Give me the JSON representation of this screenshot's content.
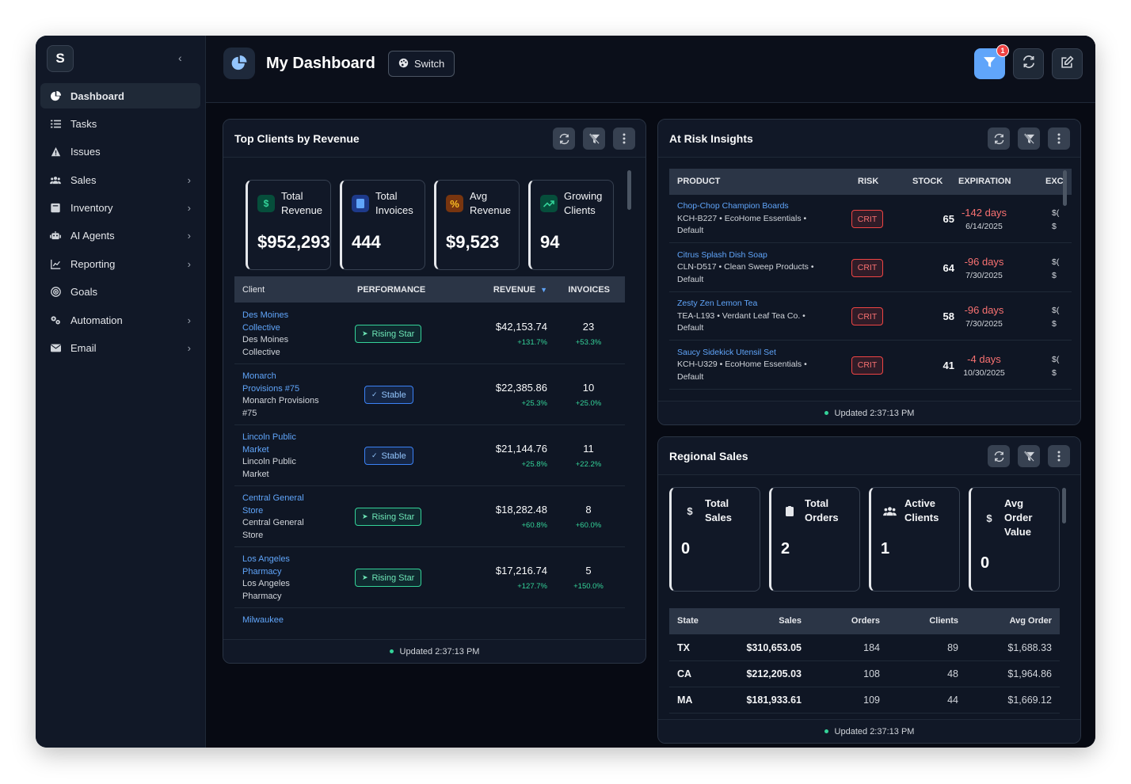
{
  "sidebar": {
    "logo": "S",
    "collapse_icon": "chevron-left-icon",
    "items": [
      {
        "label": "Dashboard",
        "icon": "pie-chart-icon",
        "active": true
      },
      {
        "label": "Tasks",
        "icon": "list-icon"
      },
      {
        "label": "Issues",
        "icon": "warning-icon"
      },
      {
        "label": "Sales",
        "icon": "users-icon",
        "has_children": true
      },
      {
        "label": "Inventory",
        "icon": "box-icon",
        "has_children": true
      },
      {
        "label": "AI Agents",
        "icon": "robot-icon",
        "has_children": true
      },
      {
        "label": "Reporting",
        "icon": "line-chart-icon",
        "has_children": true
      },
      {
        "label": "Goals",
        "icon": "target-icon"
      },
      {
        "label": "Automation",
        "icon": "gears-icon",
        "has_children": true
      },
      {
        "label": "Email",
        "icon": "envelope-icon",
        "has_children": true
      }
    ]
  },
  "header": {
    "title": "My Dashboard",
    "switch_label": "Switch",
    "filter_badge": "1"
  },
  "top_clients": {
    "title": "Top Clients by Revenue",
    "kpis": [
      {
        "label1": "Total",
        "label2": "Revenue",
        "value": "$952,293",
        "icon": "dollar-icon",
        "icon_color": "#34d399",
        "icon_bg": "#064e3b"
      },
      {
        "label1": "Total",
        "label2": "Invoices",
        "value": "444",
        "icon": "document-icon",
        "icon_color": "#60a5fa",
        "icon_bg": "#1e3a8a"
      },
      {
        "label1": "Avg",
        "label2": "Revenue",
        "value": "$9,523",
        "icon": "percent-icon",
        "icon_color": "#fbbf24",
        "icon_bg": "#78350f"
      },
      {
        "label1": "Growing",
        "label2": "Clients",
        "value": "94",
        "icon": "trend-up-icon",
        "icon_color": "#34d399",
        "icon_bg": "#064e3b"
      }
    ],
    "columns": {
      "client": "Client",
      "performance": "PERFORMANCE",
      "revenue": "REVENUE",
      "invoices": "INVOICES"
    },
    "rows": [
      {
        "name1": "Des Moines",
        "name2": "Collective",
        "sub1": "Des Moines",
        "sub2": "Collective",
        "perf": "Rising Star",
        "perf_type": "rising",
        "revenue": "$42,153.74",
        "rev_change": "+131.7%",
        "invoices": "23",
        "inv_change": "+53.3%"
      },
      {
        "name1": "Monarch",
        "name2": "Provisions #75",
        "sub1": "Monarch Provisions",
        "sub2": "#75",
        "perf": "Stable",
        "perf_type": "stable",
        "revenue": "$22,385.86",
        "rev_change": "+25.3%",
        "invoices": "10",
        "inv_change": "+25.0%"
      },
      {
        "name1": "Lincoln Public",
        "name2": "Market",
        "sub1": "Lincoln Public",
        "sub2": "Market",
        "perf": "Stable",
        "perf_type": "stable",
        "revenue": "$21,144.76",
        "rev_change": "+25.8%",
        "invoices": "11",
        "inv_change": "+22.2%"
      },
      {
        "name1": "Central General",
        "name2": "Store",
        "sub1": "Central General",
        "sub2": "Store",
        "perf": "Rising Star",
        "perf_type": "rising",
        "revenue": "$18,282.48",
        "rev_change": "+60.8%",
        "invoices": "8",
        "inv_change": "+60.0%"
      },
      {
        "name1": "Los Angeles",
        "name2": "Pharmacy",
        "sub1": "Los Angeles",
        "sub2": "Pharmacy",
        "perf": "Rising Star",
        "perf_type": "rising",
        "revenue": "$17,216.74",
        "rev_change": "+127.7%",
        "invoices": "5",
        "inv_change": "+150.0%"
      },
      {
        "name1": "Milwaukee",
        "name2": "",
        "sub1": "",
        "sub2": "",
        "perf": "",
        "perf_type": "",
        "revenue": "",
        "rev_change": "",
        "invoices": "",
        "inv_change": ""
      }
    ],
    "updated": "Updated 2:37:13 PM"
  },
  "at_risk": {
    "title": "At Risk Insights",
    "columns": {
      "product": "PRODUCT",
      "risk": "RISK",
      "stock": "STOCK",
      "expiration": "EXPIRATION",
      "exc": "EXC"
    },
    "rows": [
      {
        "name": "Chop-Chop Champion Boards",
        "meta": "KCH-B227 • EcoHome Essentials •",
        "loc": "Default",
        "risk": "CRIT",
        "stock": "65",
        "days": "-142 days",
        "date": "6/14/2025",
        "exc1": "$(",
        "exc2": "$"
      },
      {
        "name": "Citrus Splash Dish Soap",
        "meta": "CLN-D517 • Clean Sweep Products •",
        "loc": "Default",
        "risk": "CRIT",
        "stock": "64",
        "days": "-96 days",
        "date": "7/30/2025",
        "exc1": "$(",
        "exc2": "$"
      },
      {
        "name": "Zesty Zen Lemon Tea",
        "meta": "TEA-L193 • Verdant Leaf Tea Co. •",
        "loc": "Default",
        "risk": "CRIT",
        "stock": "58",
        "days": "-96 days",
        "date": "7/30/2025",
        "exc1": "$(",
        "exc2": "$"
      },
      {
        "name": "Saucy Sidekick Utensil Set",
        "meta": "KCH-U329 • EcoHome Essentials •",
        "loc": "Default",
        "risk": "CRIT",
        "stock": "41",
        "days": "-4 days",
        "date": "10/30/2025",
        "exc1": "$(",
        "exc2": "$"
      }
    ],
    "updated": "Updated 2:37:13 PM"
  },
  "regional": {
    "title": "Regional Sales",
    "kpis": [
      {
        "label1": "Total",
        "label2": "Sales",
        "label3": "",
        "value": "0",
        "icon": "dollar-icon"
      },
      {
        "label1": "Total",
        "label2": "Orders",
        "label3": "",
        "value": "2",
        "icon": "clipboard-icon"
      },
      {
        "label1": "Active",
        "label2": "Clients",
        "label3": "",
        "value": "1",
        "icon": "users-icon"
      },
      {
        "label1": "Avg",
        "label2": "Order",
        "label3": "Value",
        "value": "0",
        "icon": "dollar-icon"
      }
    ],
    "columns": {
      "state": "State",
      "sales": "Sales",
      "orders": "Orders",
      "clients": "Clients",
      "avg": "Avg Order"
    },
    "rows": [
      {
        "state": "TX",
        "sales": "$310,653.05",
        "orders": "184",
        "clients": "89",
        "avg": "$1,688.33"
      },
      {
        "state": "CA",
        "sales": "$212,205.03",
        "orders": "108",
        "clients": "48",
        "avg": "$1,964.86"
      },
      {
        "state": "MA",
        "sales": "$181,933.61",
        "orders": "109",
        "clients": "44",
        "avg": "$1,669.12"
      }
    ],
    "updated": "Updated 2:37:13 PM"
  }
}
